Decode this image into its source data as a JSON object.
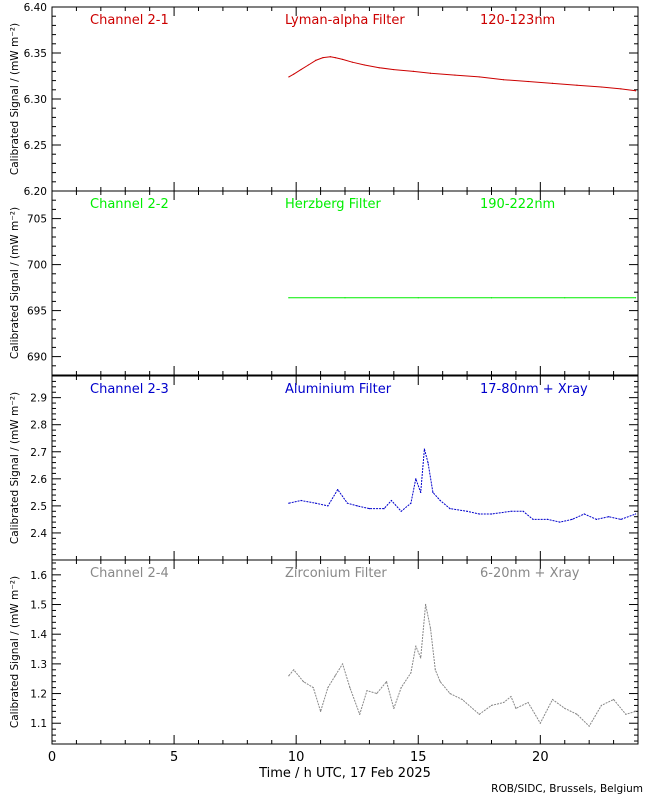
{
  "chart_data": [
    {
      "type": "line",
      "channel_label": "Channel 2-1",
      "filter_label": "Lyman-alpha Filter",
      "band_label": "120-123nm",
      "color": "#cc0000",
      "ylabel": "Calibrated Signal / (mW m⁻²)",
      "ylim": [
        6.2,
        6.4
      ],
      "yticks": [
        "6.20",
        "6.25",
        "6.30",
        "6.35",
        "6.40"
      ],
      "series": [
        {
          "x": [
            9.7,
            9.9,
            10.2,
            10.5,
            10.8,
            11.1,
            11.4,
            11.6,
            11.9,
            12.3,
            12.8,
            13.4,
            14.0,
            14.8,
            15.5,
            16.5,
            17.5,
            18.5,
            19.5,
            20.5,
            21.5,
            22.5,
            23.3,
            23.9
          ],
          "y": [
            6.324,
            6.327,
            6.332,
            6.337,
            6.342,
            6.345,
            6.346,
            6.345,
            6.343,
            6.34,
            6.337,
            6.334,
            6.332,
            6.33,
            6.328,
            6.326,
            6.324,
            6.321,
            6.319,
            6.317,
            6.315,
            6.313,
            6.311,
            6.309
          ]
        }
      ]
    },
    {
      "type": "line",
      "channel_label": "Channel 2-2",
      "filter_label": "Herzberg Filter",
      "band_label": "190-222nm",
      "color": "#00ee00",
      "ylabel": "Calibrated Signal / (mW m⁻²)",
      "ylim": [
        688,
        708
      ],
      "yticks": [
        "690",
        "695",
        "700",
        "705"
      ],
      "series": [
        {
          "x": [
            9.7,
            12.0,
            15.0,
            18.0,
            21.0,
            23.9
          ],
          "y": [
            696.4,
            696.4,
            696.4,
            696.4,
            696.4,
            696.4
          ]
        }
      ]
    },
    {
      "type": "line",
      "channel_label": "Channel 2-3",
      "filter_label": "Aluminium Filter",
      "band_label": "17-80nm + Xray",
      "color": "#0000cc",
      "ylabel": "Calibrated Signal / (mW m⁻²)",
      "ylim": [
        2.3,
        2.98
      ],
      "yticks": [
        "2.4",
        "2.5",
        "2.6",
        "2.7",
        "2.8",
        "2.9"
      ],
      "series": [
        {
          "x": [
            9.7,
            10.2,
            10.8,
            11.3,
            11.7,
            12.1,
            12.5,
            13.0,
            13.6,
            13.9,
            14.3,
            14.7,
            14.9,
            15.1,
            15.25,
            15.4,
            15.6,
            15.9,
            16.3,
            17.0,
            17.5,
            18.0,
            18.8,
            19.3,
            19.7,
            20.3,
            20.8,
            21.3,
            21.8,
            22.3,
            22.8,
            23.3,
            23.9
          ],
          "y": [
            2.51,
            2.52,
            2.51,
            2.5,
            2.56,
            2.51,
            2.5,
            2.49,
            2.49,
            2.52,
            2.48,
            2.51,
            2.6,
            2.55,
            2.71,
            2.66,
            2.55,
            2.52,
            2.49,
            2.48,
            2.47,
            2.47,
            2.48,
            2.48,
            2.45,
            2.45,
            2.44,
            2.45,
            2.47,
            2.45,
            2.46,
            2.45,
            2.47
          ]
        }
      ]
    },
    {
      "type": "line",
      "channel_label": "Channel 2-4",
      "filter_label": "Zirconium Filter",
      "band_label": "6-20nm + Xray",
      "color": "#888888",
      "ylabel": "Calibrated Signal / (mW m⁻²)",
      "ylim": [
        1.03,
        1.65
      ],
      "yticks": [
        "1.1",
        "1.2",
        "1.3",
        "1.4",
        "1.5",
        "1.6"
      ],
      "series": [
        {
          "x": [
            9.7,
            9.9,
            10.3,
            10.7,
            11.0,
            11.3,
            11.6,
            11.9,
            12.2,
            12.6,
            12.9,
            13.3,
            13.7,
            14.0,
            14.3,
            14.7,
            14.9,
            15.1,
            15.3,
            15.5,
            15.7,
            15.9,
            16.3,
            16.8,
            17.5,
            18.0,
            18.5,
            18.8,
            19.0,
            19.5,
            20.0,
            20.5,
            21.0,
            21.5,
            22.0,
            22.5,
            23.0,
            23.5,
            23.9
          ],
          "y": [
            1.26,
            1.28,
            1.24,
            1.22,
            1.14,
            1.22,
            1.26,
            1.3,
            1.22,
            1.13,
            1.21,
            1.2,
            1.24,
            1.15,
            1.22,
            1.27,
            1.36,
            1.32,
            1.5,
            1.42,
            1.28,
            1.24,
            1.2,
            1.18,
            1.13,
            1.16,
            1.17,
            1.19,
            1.15,
            1.17,
            1.1,
            1.18,
            1.15,
            1.13,
            1.09,
            1.16,
            1.18,
            1.13,
            1.14
          ]
        }
      ]
    }
  ],
  "xaxis": {
    "label": "Time / h UTC, 17 Feb 2025",
    "ticks": [
      "0",
      "5",
      "10",
      "15",
      "20"
    ],
    "range": [
      0,
      24
    ]
  },
  "credit": "ROB/SIDC, Brussels, Belgium"
}
